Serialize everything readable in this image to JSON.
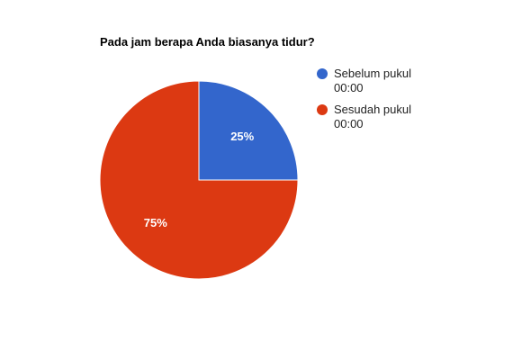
{
  "chart_data": {
    "type": "pie",
    "title": "Pada jam berapa Anda biasanya tidur?",
    "slices": [
      {
        "label": "Sebelum pukul 00:00",
        "value": 25,
        "display": "25%",
        "color": "#3366cc"
      },
      {
        "label": "Sesudah pukul 00:00",
        "value": 75,
        "display": "75%",
        "color": "#dc3912"
      }
    ],
    "legend_position": "right",
    "start_angle": "12 o'clock, clockwise"
  }
}
